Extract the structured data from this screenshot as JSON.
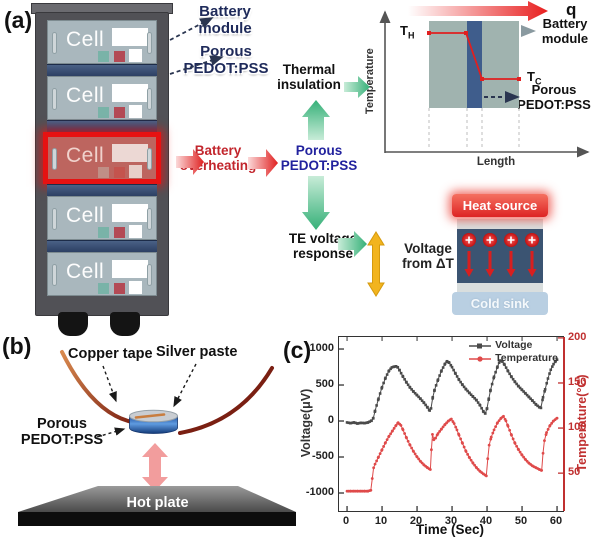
{
  "panel_a": {
    "label": "(a)",
    "rack": {
      "cell_label": "Cell",
      "cell_count": 5,
      "overheating_cell": 3
    },
    "callouts": {
      "battery_module": "Battery module",
      "porous_pedot": "Porous PEDOT:PSS"
    },
    "flow": {
      "battery_overheating": "Battery overheating",
      "porous_pedot": "Porous PEDOT:PSS",
      "thermal_insulation": "Thermal insulation",
      "te_voltage_response": "TE voltage response",
      "voltage_from_dt": "Voltage from ΔT"
    },
    "inset_profile": {
      "q_label": "q",
      "y_axis": "Temperature",
      "x_axis": "Length",
      "t_hot": {
        "base": "T",
        "sub": "H"
      },
      "t_cold": {
        "base": "T",
        "sub": "C"
      },
      "battery_module": "Battery module",
      "porous_pedot": "Porous PEDOT:PSS"
    },
    "inset_te": {
      "heat_source": "Heat source",
      "cold_sink": "Cold sink",
      "charge_symbol": "+"
    }
  },
  "panel_b": {
    "label": "(b)",
    "copper_tape": "Copper tape",
    "silver_paste": "Silver paste",
    "porous_pedot": "Porous PEDOT:PSS",
    "hot_plate": "Hot plate"
  },
  "panel_c": {
    "label": "(c)"
  },
  "chart_data": {
    "type": "line",
    "xlabel": "Time (Sec)",
    "ylabel_left": "Voltage(μV)",
    "ylabel_right": "Temperature(°C)",
    "xlim": [
      -2.3,
      61.7
    ],
    "ylim_left": [
      -1250,
      1167
    ],
    "ylim_right": [
      8,
      201
    ],
    "xticks": [
      0,
      10,
      20,
      30,
      40,
      50,
      60
    ],
    "yticks_left": [
      1000,
      500,
      0,
      -500,
      -1000
    ],
    "yticks_right": [
      200,
      150,
      100,
      50
    ],
    "grid": false,
    "legend_position": "top-right",
    "series": [
      {
        "name": "Voltage",
        "axis": "left",
        "color": "#4a4a4a",
        "marker": "square",
        "points": [
          [
            0,
            -20
          ],
          [
            1,
            -30
          ],
          [
            2,
            -20
          ],
          [
            3,
            -35
          ],
          [
            4,
            -25
          ],
          [
            5,
            -30
          ],
          [
            6,
            -20
          ],
          [
            7,
            5
          ],
          [
            7.5,
            40
          ],
          [
            8,
            140
          ],
          [
            9,
            310
          ],
          [
            10,
            470
          ],
          [
            11,
            600
          ],
          [
            12,
            700
          ],
          [
            12.8,
            745
          ],
          [
            13.5,
            755
          ],
          [
            14,
            760
          ],
          [
            14.5,
            745
          ],
          [
            15,
            705
          ],
          [
            16,
            615
          ],
          [
            17,
            535
          ],
          [
            18,
            465
          ],
          [
            19,
            408
          ],
          [
            20,
            358
          ],
          [
            21,
            308
          ],
          [
            22,
            252
          ],
          [
            23,
            188
          ],
          [
            23.6,
            145
          ],
          [
            24,
            175
          ],
          [
            24.5,
            330
          ],
          [
            25,
            430
          ],
          [
            26,
            575
          ],
          [
            27,
            700
          ],
          [
            28,
            795
          ],
          [
            28.6,
            830
          ],
          [
            29.2,
            810
          ],
          [
            30,
            748
          ],
          [
            31,
            658
          ],
          [
            32,
            572
          ],
          [
            33,
            502
          ],
          [
            34,
            440
          ],
          [
            35,
            388
          ],
          [
            36,
            338
          ],
          [
            37,
            288
          ],
          [
            38,
            218
          ],
          [
            39,
            128
          ],
          [
            39.5,
            105
          ],
          [
            40,
            175
          ],
          [
            40.5,
            310
          ],
          [
            41,
            430
          ],
          [
            42,
            615
          ],
          [
            43,
            755
          ],
          [
            43.7,
            840
          ],
          [
            44.4,
            825
          ],
          [
            45,
            782
          ],
          [
            46,
            692
          ],
          [
            47,
            612
          ],
          [
            48,
            542
          ],
          [
            49,
            482
          ],
          [
            50,
            432
          ],
          [
            51,
            382
          ],
          [
            52,
            332
          ],
          [
            53,
            282
          ],
          [
            54,
            228
          ],
          [
            55,
            190
          ],
          [
            55.4,
            182
          ],
          [
            56,
            330
          ],
          [
            56.6,
            440
          ],
          [
            57.4,
            590
          ],
          [
            58.2,
            712
          ],
          [
            59,
            790
          ],
          [
            59.6,
            832
          ],
          [
            60,
            852
          ]
        ]
      },
      {
        "name": "Temperature",
        "axis": "right",
        "color": "#df4a4a",
        "marker": "circle",
        "points": [
          [
            0,
            30
          ],
          [
            1,
            30
          ],
          [
            2,
            30
          ],
          [
            3,
            30
          ],
          [
            4,
            30
          ],
          [
            5,
            30
          ],
          [
            6,
            30
          ],
          [
            6.8,
            31
          ],
          [
            7.2,
            44
          ],
          [
            7.6,
            56
          ],
          [
            8,
            60
          ],
          [
            9,
            68
          ],
          [
            10,
            76
          ],
          [
            11,
            84
          ],
          [
            12,
            91
          ],
          [
            13,
            97
          ],
          [
            14,
            103
          ],
          [
            14.6,
            106
          ],
          [
            15.4,
            103
          ],
          [
            16,
            98
          ],
          [
            17,
            89
          ],
          [
            18,
            81
          ],
          [
            19,
            74
          ],
          [
            20,
            68
          ],
          [
            21,
            63
          ],
          [
            22,
            59
          ],
          [
            23,
            56
          ],
          [
            23.8,
            54
          ],
          [
            24.1,
            76
          ],
          [
            24.4,
            93
          ],
          [
            24.8,
            87
          ],
          [
            25.3,
            89
          ],
          [
            26,
            94
          ],
          [
            27,
            99
          ],
          [
            28,
            104
          ],
          [
            29,
            108
          ],
          [
            29.8,
            110
          ],
          [
            30.6,
            105
          ],
          [
            31.4,
            98
          ],
          [
            32,
            92
          ],
          [
            33,
            83
          ],
          [
            34,
            74
          ],
          [
            35,
            67
          ],
          [
            36,
            61
          ],
          [
            37,
            56
          ],
          [
            38,
            52
          ],
          [
            39,
            49
          ],
          [
            39.8,
            47
          ],
          [
            40.2,
            66
          ],
          [
            40.6,
            81
          ],
          [
            41.2,
            90
          ],
          [
            42,
            98
          ],
          [
            43,
            106
          ],
          [
            44,
            111
          ],
          [
            44.7,
            113
          ],
          [
            45.4,
            108
          ],
          [
            46,
            102
          ],
          [
            47,
            92
          ],
          [
            48,
            83
          ],
          [
            49,
            76
          ],
          [
            50,
            70
          ],
          [
            51,
            65
          ],
          [
            52,
            61
          ],
          [
            53,
            58
          ],
          [
            54,
            56
          ],
          [
            55,
            54
          ],
          [
            55.6,
            53
          ],
          [
            56,
            72
          ],
          [
            56.4,
            86
          ],
          [
            57,
            95
          ],
          [
            58,
            103
          ],
          [
            59,
            108
          ],
          [
            60,
            111
          ]
        ]
      }
    ]
  },
  "colors": {
    "accent_red": "#d32f2f",
    "navy_text": "#22229e",
    "overheat_red": "#c2252c",
    "green_arrow": "#3cb27c",
    "yellow_arrow": "#f2b41e",
    "voltage_series": "#4a4a4a",
    "temperature_series": "#df4a4a",
    "heat_source_red": "#e23a3a",
    "cold_sink_blue": "#b9cfe2",
    "pedot_layer_navy": "#3b5472",
    "cell_body_gray": "#a9b7bd"
  }
}
